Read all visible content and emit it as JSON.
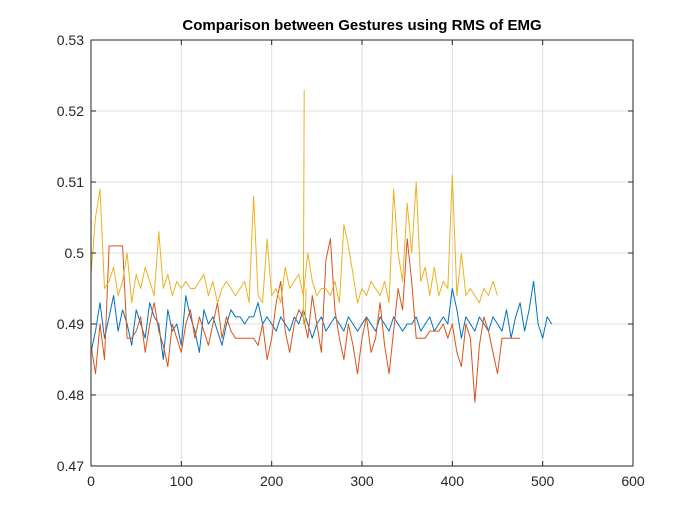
{
  "chart_data": {
    "type": "line",
    "title": "Comparison between Gestures using RMS of EMG",
    "xlabel": "",
    "ylabel": "",
    "xlim": [
      0,
      600
    ],
    "ylim": [
      0.47,
      0.53
    ],
    "x_ticks": [
      "0",
      "100",
      "200",
      "300",
      "400",
      "500",
      "600"
    ],
    "y_ticks": [
      "0.47",
      "0.48",
      "0.49",
      "0.5",
      "0.51",
      "0.52",
      "0.53"
    ],
    "grid": true,
    "legend": "none",
    "series": [
      {
        "color": "#0072BD",
        "x": [
          0,
          5,
          10,
          15,
          20,
          25,
          30,
          35,
          40,
          45,
          50,
          55,
          60,
          65,
          70,
          75,
          80,
          85,
          90,
          95,
          100,
          105,
          110,
          115,
          120,
          125,
          130,
          135,
          140,
          145,
          150,
          155,
          160,
          165,
          170,
          175,
          180,
          185,
          190,
          195,
          200,
          205,
          210,
          215,
          220,
          225,
          230,
          235,
          240,
          245,
          250,
          255,
          260,
          265,
          270,
          275,
          280,
          285,
          290,
          295,
          300,
          305,
          310,
          315,
          320,
          325,
          330,
          335,
          340,
          345,
          350,
          355,
          360,
          365,
          370,
          375,
          380,
          385,
          390,
          395,
          400,
          405,
          410,
          415,
          420,
          425,
          430,
          435,
          440,
          445,
          450,
          455,
          460,
          465,
          470,
          475,
          480,
          485,
          490,
          495,
          500,
          505,
          510
        ],
        "y": [
          0.486,
          0.489,
          0.493,
          0.488,
          0.491,
          0.494,
          0.489,
          0.492,
          0.49,
          0.487,
          0.492,
          0.49,
          0.488,
          0.493,
          0.491,
          0.49,
          0.485,
          0.492,
          0.489,
          0.49,
          0.487,
          0.494,
          0.491,
          0.489,
          0.486,
          0.492,
          0.49,
          0.491,
          0.489,
          0.487,
          0.49,
          0.492,
          0.491,
          0.491,
          0.49,
          0.491,
          0.491,
          0.493,
          0.49,
          0.491,
          0.49,
          0.489,
          0.491,
          0.49,
          0.489,
          0.491,
          0.49,
          0.492,
          0.49,
          0.488,
          0.49,
          0.491,
          0.489,
          0.49,
          0.491,
          0.49,
          0.489,
          0.491,
          0.49,
          0.489,
          0.49,
          0.491,
          0.49,
          0.489,
          0.491,
          0.49,
          0.489,
          0.491,
          0.49,
          0.489,
          0.49,
          0.49,
          0.491,
          0.489,
          0.49,
          0.491,
          0.489,
          0.49,
          0.491,
          0.49,
          0.495,
          0.492,
          0.488,
          0.491,
          0.49,
          0.489,
          0.491,
          0.49,
          0.489,
          0.491,
          0.49,
          0.489,
          0.492,
          0.488,
          0.491,
          0.493,
          0.489,
          0.492,
          0.496,
          0.49,
          0.488,
          0.491,
          0.49
        ]
      },
      {
        "color": "#D95319",
        "x": [
          0,
          5,
          10,
          15,
          20,
          25,
          30,
          35,
          40,
          45,
          50,
          55,
          60,
          65,
          70,
          75,
          80,
          85,
          90,
          95,
          100,
          105,
          110,
          115,
          120,
          125,
          130,
          135,
          140,
          145,
          150,
          155,
          160,
          165,
          170,
          175,
          180,
          185,
          190,
          195,
          200,
          205,
          210,
          215,
          220,
          225,
          230,
          235,
          240,
          245,
          250,
          255,
          260,
          265,
          270,
          275,
          280,
          285,
          290,
          295,
          300,
          305,
          310,
          315,
          320,
          325,
          330,
          335,
          340,
          345,
          350,
          355,
          360,
          365,
          370,
          375,
          380,
          385,
          390,
          395,
          400,
          405,
          410,
          415,
          420,
          425,
          430,
          435,
          440,
          445,
          450,
          455,
          460,
          465,
          470,
          475
        ],
        "y": [
          0.487,
          0.483,
          0.49,
          0.485,
          0.501,
          0.501,
          0.501,
          0.501,
          0.488,
          0.488,
          0.489,
          0.491,
          0.486,
          0.49,
          0.493,
          0.489,
          0.487,
          0.484,
          0.49,
          0.488,
          0.486,
          0.49,
          0.492,
          0.488,
          0.491,
          0.489,
          0.487,
          0.49,
          0.493,
          0.488,
          0.491,
          0.489,
          0.488,
          0.488,
          0.488,
          0.488,
          0.488,
          0.487,
          0.49,
          0.485,
          0.488,
          0.493,
          0.496,
          0.489,
          0.486,
          0.49,
          0.492,
          0.491,
          0.488,
          0.494,
          0.49,
          0.486,
          0.499,
          0.502,
          0.492,
          0.488,
          0.485,
          0.49,
          0.487,
          0.483,
          0.488,
          0.491,
          0.486,
          0.488,
          0.493,
          0.487,
          0.483,
          0.489,
          0.495,
          0.492,
          0.502,
          0.496,
          0.488,
          0.488,
          0.488,
          0.489,
          0.489,
          0.489,
          0.49,
          0.488,
          0.49,
          0.486,
          0.484,
          0.49,
          0.488,
          0.479,
          0.487,
          0.491,
          0.489,
          0.486,
          0.483,
          0.488,
          0.488,
          0.488,
          0.488,
          0.488
        ]
      },
      {
        "color": "#EDB120",
        "x": [
          0,
          5,
          10,
          15,
          20,
          25,
          30,
          35,
          40,
          45,
          50,
          55,
          60,
          65,
          70,
          75,
          80,
          85,
          90,
          95,
          100,
          105,
          110,
          115,
          120,
          125,
          130,
          135,
          140,
          145,
          150,
          155,
          160,
          165,
          170,
          175,
          180,
          185,
          190,
          195,
          200,
          205,
          210,
          215,
          220,
          225,
          230,
          235,
          240,
          245,
          250,
          255,
          260,
          265,
          270,
          275,
          280,
          285,
          290,
          295,
          300,
          305,
          310,
          315,
          320,
          325,
          330,
          335,
          340,
          345,
          350,
          355,
          360,
          365,
          370,
          375,
          380,
          385,
          390,
          395,
          400,
          405,
          410,
          415,
          420,
          425,
          430,
          435,
          440,
          445,
          450
        ],
        "y": [
          0.497,
          0.505,
          0.509,
          0.495,
          0.496,
          0.498,
          0.494,
          0.496,
          0.5,
          0.493,
          0.497,
          0.495,
          0.498,
          0.496,
          0.494,
          0.503,
          0.495,
          0.497,
          0.494,
          0.496,
          0.495,
          0.496,
          0.495,
          0.495,
          0.496,
          0.497,
          0.494,
          0.496,
          0.493,
          0.495,
          0.496,
          0.495,
          0.494,
          0.495,
          0.496,
          0.493,
          0.508,
          0.494,
          0.493,
          0.502,
          0.494,
          0.495,
          0.493,
          0.498,
          0.495,
          0.496,
          0.497,
          0.494,
          0.5,
          0.496,
          0.494,
          0.495,
          0.495,
          0.494,
          0.496,
          0.493,
          0.504,
          0.501,
          0.497,
          0.493,
          0.495,
          0.494,
          0.496,
          0.495,
          0.494,
          0.496,
          0.493,
          0.509,
          0.5,
          0.496,
          0.507,
          0.5,
          0.51,
          0.496,
          0.498,
          0.494,
          0.498,
          0.494,
          0.496,
          0.495,
          0.511,
          0.494,
          0.5,
          0.494,
          0.495,
          0.494,
          0.493,
          0.495,
          0.494,
          0.496,
          0.494
        ]
      }
    ],
    "spikes": [
      {
        "series": 2,
        "x": [
          236,
          235,
          237,
          238
        ],
        "y": [
          0.523,
          0.49,
          0.49,
          0.495
        ]
      }
    ]
  }
}
